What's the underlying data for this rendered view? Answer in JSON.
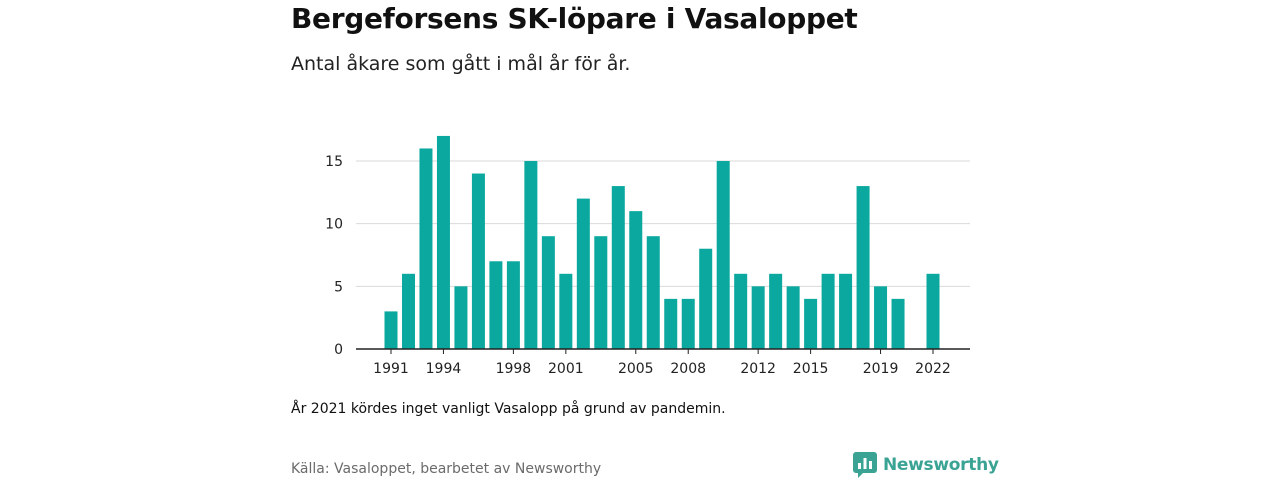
{
  "title": "Bergeforsens SK-löpare i Vasaloppet",
  "subtitle": "Antal åkare som gått i mål år för år.",
  "note": "År 2021 kördes inget vanligt Vasalopp på grund av pandemin.",
  "source": "Källa: Vasaloppet, bearbetet av Newsworthy",
  "logo_text": "Newsworthy",
  "colors": {
    "bar": "#0aa89e",
    "grid": "#d9d9d9",
    "axis": "#222222",
    "logo": "#3aa394"
  },
  "chart_data": {
    "type": "bar",
    "x": [
      1991,
      1992,
      1993,
      1994,
      1995,
      1996,
      1997,
      1998,
      1999,
      2000,
      2001,
      2002,
      2003,
      2004,
      2005,
      2006,
      2007,
      2008,
      2009,
      2010,
      2011,
      2012,
      2013,
      2014,
      2015,
      2016,
      2017,
      2018,
      2019,
      2020,
      2022
    ],
    "values": [
      3,
      6,
      16,
      17,
      5,
      14,
      7,
      7,
      15,
      9,
      6,
      12,
      9,
      13,
      11,
      9,
      4,
      4,
      8,
      15,
      6,
      5,
      6,
      5,
      4,
      6,
      6,
      13,
      5,
      4,
      6
    ],
    "xlim": [
      1991,
      2022
    ],
    "xticks": [
      1991,
      1994,
      1998,
      2001,
      2005,
      2008,
      2012,
      2015,
      2019,
      2022
    ],
    "ylim": [
      0,
      17
    ],
    "yticks": [
      0,
      5,
      10,
      15
    ],
    "grid": true,
    "xlabel": "",
    "ylabel": ""
  }
}
